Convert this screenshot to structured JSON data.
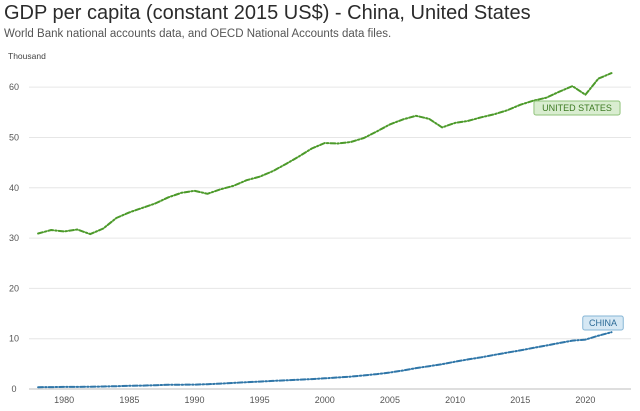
{
  "header": {
    "title": "GDP per capita (constant 2015 US$) - China, United States",
    "subtitle": "World Bank national accounts data, and OECD National Accounts data files."
  },
  "chart_data": {
    "type": "line",
    "unit_label": "Thousand",
    "x": [
      1978,
      1979,
      1980,
      1981,
      1982,
      1983,
      1984,
      1985,
      1986,
      1987,
      1988,
      1989,
      1990,
      1991,
      1992,
      1993,
      1994,
      1995,
      1996,
      1997,
      1998,
      1999,
      2000,
      2001,
      2002,
      2003,
      2004,
      2005,
      2006,
      2007,
      2008,
      2009,
      2010,
      2011,
      2012,
      2013,
      2014,
      2015,
      2016,
      2017,
      2018,
      2019,
      2020,
      2021,
      2022
    ],
    "xlim": [
      1977.3,
      2023.5
    ],
    "ylim": [
      0,
      65
    ],
    "x_ticks": [
      1980,
      1985,
      1990,
      1995,
      2000,
      2005,
      2010,
      2015,
      2020
    ],
    "y_ticks": [
      0,
      10,
      20,
      30,
      40,
      50,
      60
    ],
    "grid": true,
    "series": [
      {
        "name": "UNITED STATES",
        "color": "#4c9a2a",
        "label_fill": "#d9edd0",
        "label_stroke": "#8fc27a",
        "label_text_color": "#3d7a22",
        "values": [
          30.9,
          31.6,
          31.3,
          31.7,
          30.8,
          31.9,
          34.0,
          35.1,
          36.0,
          36.9,
          38.1,
          39.0,
          39.4,
          38.8,
          39.7,
          40.4,
          41.5,
          42.2,
          43.3,
          44.7,
          46.2,
          47.8,
          48.9,
          48.8,
          49.1,
          49.9,
          51.2,
          52.6,
          53.6,
          54.3,
          53.7,
          52.0,
          52.9,
          53.3,
          54.0,
          54.6,
          55.4,
          56.5,
          57.3,
          57.9,
          59.1,
          60.2,
          58.5,
          61.7,
          62.8
        ]
      },
      {
        "name": "CHINA",
        "color": "#2f76a8",
        "label_fill": "#d6e8f4",
        "label_stroke": "#86b6d6",
        "label_text_color": "#2c6a96",
        "values": [
          0.36,
          0.38,
          0.41,
          0.42,
          0.46,
          0.49,
          0.56,
          0.63,
          0.68,
          0.75,
          0.83,
          0.85,
          0.87,
          0.95,
          1.07,
          1.21,
          1.35,
          1.48,
          1.61,
          1.73,
          1.85,
          1.97,
          2.12,
          2.28,
          2.47,
          2.7,
          2.96,
          3.28,
          3.67,
          4.16,
          4.53,
          4.93,
          5.42,
          5.89,
          6.31,
          6.77,
          7.23,
          7.68,
          8.16,
          8.65,
          9.15,
          9.63,
          9.81,
          10.6,
          11.3
        ]
      }
    ]
  }
}
